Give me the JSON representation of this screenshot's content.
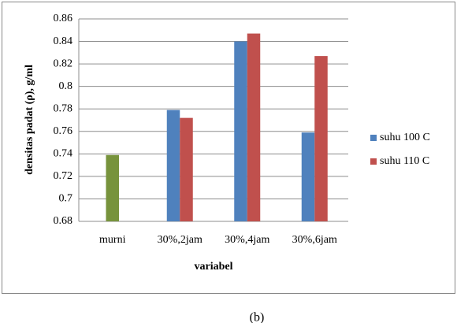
{
  "chart_data": {
    "type": "bar",
    "y_label": "densitas padat (ρ), g/ml",
    "x_label": "variabel",
    "caption": "(b)",
    "categories": [
      "murni",
      "30%,2jam",
      "30%,4jam",
      "30%,6jam"
    ],
    "series": [
      {
        "name": "suhu 100 C",
        "color": "#4f81bd",
        "point_colors": [
          "#77933c",
          "#4f81bd",
          "#4f81bd",
          "#4f81bd"
        ],
        "values": [
          0.739,
          0.779,
          0.84,
          0.759
        ]
      },
      {
        "name": "suhu 110 C",
        "color": "#c0504d",
        "values": [
          null,
          0.772,
          0.847,
          0.827
        ]
      }
    ],
    "ylim": [
      0.68,
      0.86
    ],
    "yticks": [
      0.68,
      0.7,
      0.72,
      0.74,
      0.76,
      0.78,
      0.8,
      0.82,
      0.84,
      0.86
    ],
    "grid": true,
    "legend": "right"
  }
}
